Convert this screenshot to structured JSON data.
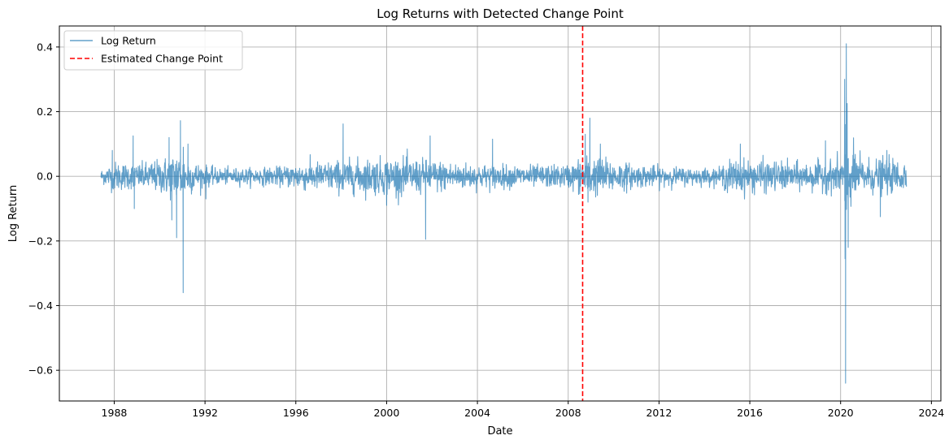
{
  "chart_data": {
    "type": "line",
    "title": "Log Returns with Detected Change Point",
    "xlabel": "Date",
    "ylabel": "Log Return",
    "x_range": [
      "1987-06-01",
      "2022-11-30"
    ],
    "xlim": [
      "1985-08-01",
      "2024-06-01"
    ],
    "ylim": [
      -0.695,
      0.465
    ],
    "x_ticks": [
      "1988",
      "1992",
      "1996",
      "2000",
      "2004",
      "2008",
      "2012",
      "2016",
      "2020",
      "2024"
    ],
    "y_ticks": [
      -0.6,
      -0.4,
      -0.2,
      0.0,
      0.2,
      0.4
    ],
    "y_tick_labels": [
      "−0.6",
      "−0.4",
      "−0.2",
      "0.0",
      "0.2",
      "0.4"
    ],
    "grid": true,
    "legend_position": "top-left",
    "series": [
      {
        "name": "Log Return",
        "color": "#1f77b4",
        "style": "solid",
        "volatility_profile": [
          {
            "date": "1987-06",
            "vol": 0.01
          },
          {
            "date": "1988-01",
            "vol": 0.022
          },
          {
            "date": "1989-01",
            "vol": 0.018
          },
          {
            "date": "1990-01",
            "vol": 0.025
          },
          {
            "date": "1990-09",
            "vol": 0.035
          },
          {
            "date": "1991-03",
            "vol": 0.03
          },
          {
            "date": "1991-09",
            "vol": 0.02
          },
          {
            "date": "1992-06",
            "vol": 0.012
          },
          {
            "date": "1994-01",
            "vol": 0.012
          },
          {
            "date": "1995-06",
            "vol": 0.014
          },
          {
            "date": "1996-01",
            "vol": 0.02
          },
          {
            "date": "1997-06",
            "vol": 0.022
          },
          {
            "date": "1999-01",
            "vol": 0.026
          },
          {
            "date": "2000-06",
            "vol": 0.028
          },
          {
            "date": "2002-01",
            "vol": 0.024
          },
          {
            "date": "2004-01",
            "vol": 0.018
          },
          {
            "date": "2006-01",
            "vol": 0.016
          },
          {
            "date": "2008-01",
            "vol": 0.017
          },
          {
            "date": "2008-09",
            "vol": 0.03
          },
          {
            "date": "2009-06",
            "vol": 0.028
          },
          {
            "date": "2011-01",
            "vol": 0.017
          },
          {
            "date": "2013-01",
            "vol": 0.013
          },
          {
            "date": "2014-09",
            "vol": 0.012
          },
          {
            "date": "2015-01",
            "vol": 0.024
          },
          {
            "date": "2016-06",
            "vol": 0.024
          },
          {
            "date": "2018-01",
            "vol": 0.02
          },
          {
            "date": "2019-06",
            "vol": 0.022
          },
          {
            "date": "2020-01",
            "vol": 0.028
          },
          {
            "date": "2020-06",
            "vol": 0.045
          },
          {
            "date": "2021-01",
            "vol": 0.026
          },
          {
            "date": "2022-01",
            "vol": 0.026
          },
          {
            "date": "2022-11",
            "vol": 0.024
          }
        ],
        "spikes": [
          {
            "date": "1987-12-01",
            "value": 0.08
          },
          {
            "date": "1988-11-01",
            "value": 0.125
          },
          {
            "date": "1988-11-20",
            "value": -0.1
          },
          {
            "date": "1990-06-01",
            "value": 0.12
          },
          {
            "date": "1990-07-15",
            "value": -0.135
          },
          {
            "date": "1990-10-01",
            "value": -0.19
          },
          {
            "date": "1990-12-01",
            "value": 0.172
          },
          {
            "date": "1991-01-15",
            "value": -0.36
          },
          {
            "date": "1991-04-01",
            "value": 0.1
          },
          {
            "date": "1992-01-15",
            "value": -0.07
          },
          {
            "date": "1998-02-01",
            "value": 0.162
          },
          {
            "date": "2000-01-01",
            "value": -0.09
          },
          {
            "date": "2001-09-20",
            "value": -0.195
          },
          {
            "date": "2001-12-01",
            "value": 0.125
          },
          {
            "date": "2004-09-01",
            "value": 0.115
          },
          {
            "date": "2008-10-01",
            "value": 0.13
          },
          {
            "date": "2008-11-15",
            "value": -0.08
          },
          {
            "date": "2008-12-15",
            "value": 0.18
          },
          {
            "date": "2009-06-01",
            "value": 0.1
          },
          {
            "date": "2015-08-01",
            "value": 0.1
          },
          {
            "date": "2019-05-01",
            "value": 0.11
          },
          {
            "date": "2020-03-05",
            "value": 0.3
          },
          {
            "date": "2020-03-12",
            "value": -0.255
          },
          {
            "date": "2020-03-20",
            "value": -0.64
          },
          {
            "date": "2020-04-01",
            "value": 0.41
          },
          {
            "date": "2020-04-15",
            "value": 0.225
          },
          {
            "date": "2020-05-01",
            "value": -0.22
          },
          {
            "date": "2021-10-01",
            "value": -0.125
          },
          {
            "date": "2022-01-15",
            "value": 0.08
          }
        ]
      },
      {
        "name": "Estimated Change Point",
        "color": "#ff0000",
        "style": "dashed",
        "date": "2008-08-20"
      }
    ]
  }
}
